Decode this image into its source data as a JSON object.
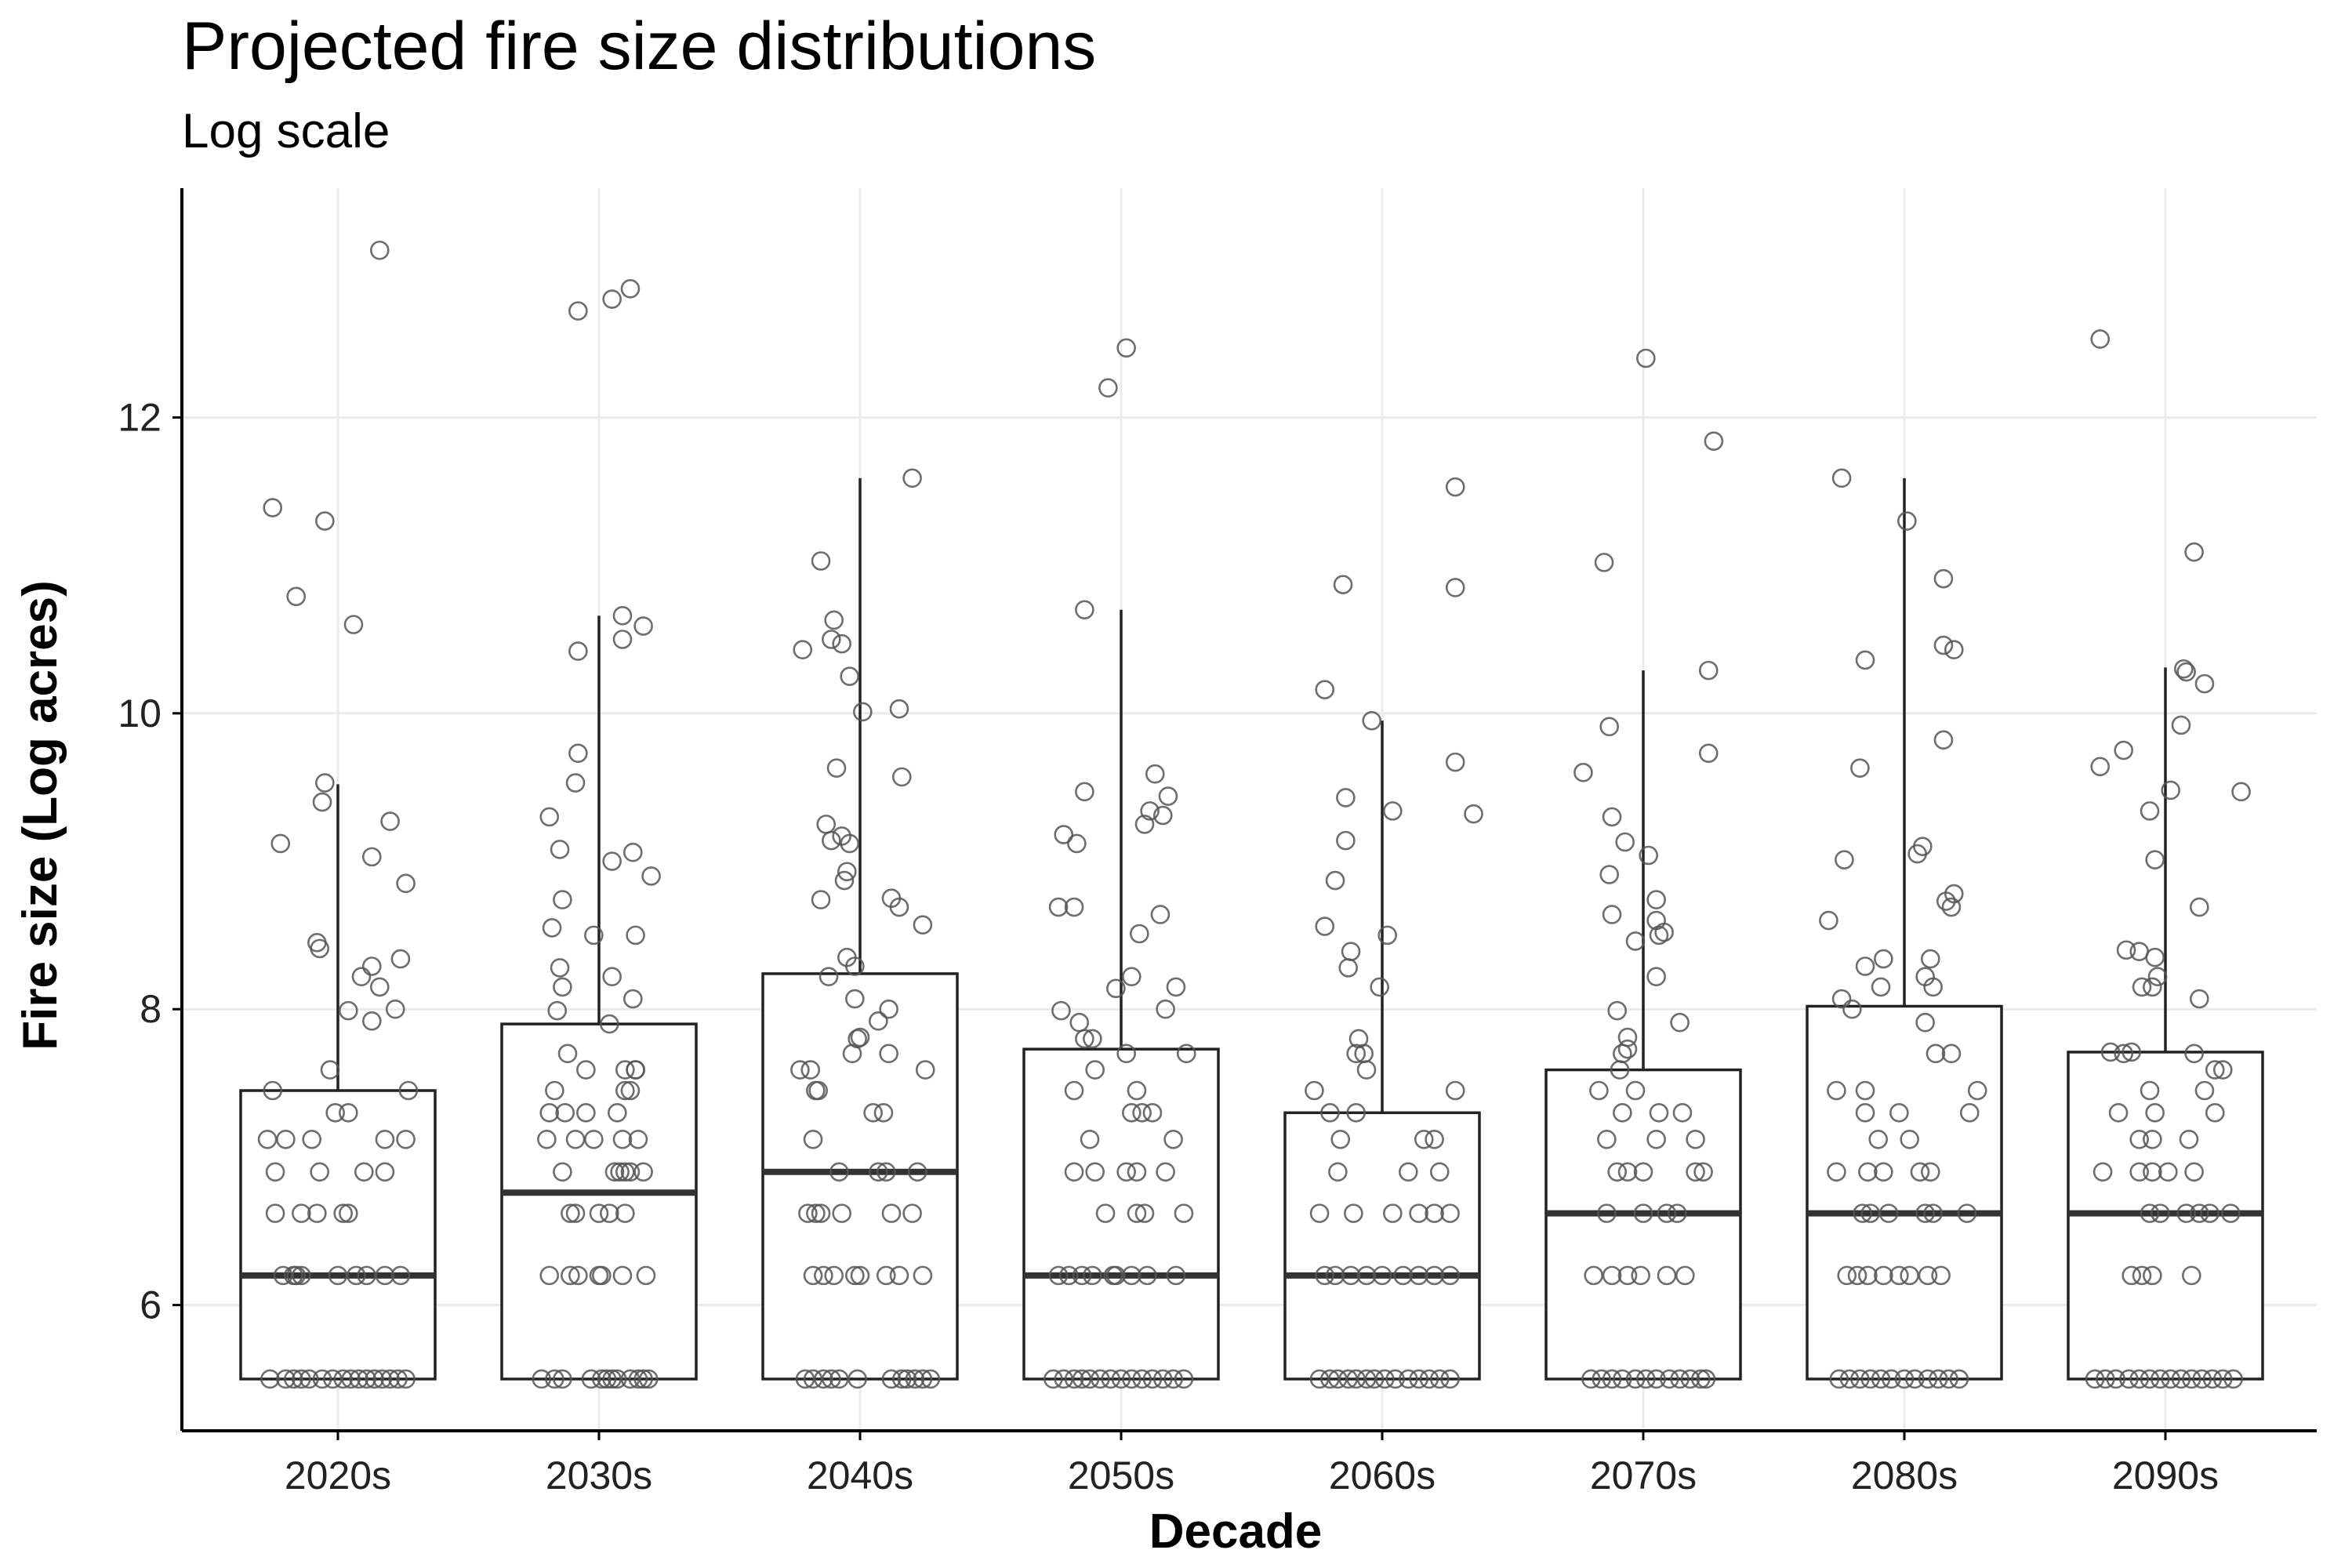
{
  "chart_data": {
    "type": "boxplot",
    "title": "Projected fire size distributions",
    "subtitle": "Log scale",
    "xlabel": "Decade",
    "ylabel": "Fire size (Log acres)",
    "ylim": [
      5.15,
      13.55
    ],
    "yticks": [
      6,
      8,
      10,
      12
    ],
    "grid": true,
    "legend": "none",
    "colors": {
      "box_stroke": "#222222",
      "point_stroke": "#555555",
      "grid": "#ebebeb",
      "axis": "#000000"
    },
    "categories": [
      "2020s",
      "2030s",
      "2040s",
      "2050s",
      "2060s",
      "2070s",
      "2080s",
      "2090s"
    ],
    "boxes": [
      {
        "category": "2020s",
        "q1": 5.5,
        "median": 6.2,
        "q3": 7.45,
        "whisker_low": 5.5,
        "whisker_high": 9.52
      },
      {
        "category": "2030s",
        "q1": 5.5,
        "median": 6.76,
        "q3": 7.9,
        "whisker_low": 5.5,
        "whisker_high": 10.66
      },
      {
        "category": "2040s",
        "q1": 5.5,
        "median": 6.9,
        "q3": 8.24,
        "whisker_low": 5.5,
        "whisker_high": 11.59
      },
      {
        "category": "2050s",
        "q1": 5.5,
        "median": 6.2,
        "q3": 7.73,
        "whisker_low": 5.5,
        "whisker_high": 10.7
      },
      {
        "category": "2060s",
        "q1": 5.5,
        "median": 6.2,
        "q3": 7.3,
        "whisker_low": 5.5,
        "whisker_high": 9.95
      },
      {
        "category": "2070s",
        "q1": 5.5,
        "median": 6.62,
        "q3": 7.59,
        "whisker_low": 5.5,
        "whisker_high": 10.29
      },
      {
        "category": "2080s",
        "q1": 5.5,
        "median": 6.62,
        "q3": 8.02,
        "whisker_low": 5.5,
        "whisker_high": 11.59
      },
      {
        "category": "2090s",
        "q1": 5.5,
        "median": 6.62,
        "q3": 7.71,
        "whisker_low": 5.5,
        "whisker_high": 10.31
      }
    ],
    "points": [
      {
        "category": "2020s",
        "values": [
          13.13,
          11.39,
          11.3,
          10.79,
          10.6,
          9.53,
          9.4,
          9.27,
          9.12,
          9.03,
          8.85,
          8.45,
          8.41,
          8.34,
          8.29,
          8.22,
          8.15,
          8.0,
          7.99,
          7.92,
          7.59,
          7.45,
          7.45,
          7.3,
          7.3,
          7.12,
          7.12,
          7.12,
          7.12,
          7.12,
          6.9,
          6.9,
          6.9,
          6.9,
          6.62,
          6.62,
          6.62,
          6.62,
          6.62,
          6.2,
          6.2,
          6.2,
          6.2,
          6.2,
          6.2,
          6.2,
          6.2,
          6.2,
          5.5,
          5.5,
          5.5,
          5.5,
          5.5,
          5.5,
          5.5,
          5.5,
          5.5,
          5.5,
          5.5,
          5.5,
          5.5,
          5.5,
          5.5,
          5.5
        ],
        "offsets": [
          0.16,
          -0.25,
          -0.05,
          -0.16,
          0.06,
          -0.05,
          -0.06,
          0.2,
          -0.22,
          0.13,
          0.26,
          -0.08,
          -0.07,
          0.24,
          0.13,
          0.09,
          0.16,
          0.22,
          0.04,
          0.13,
          -0.03,
          -0.25,
          0.27,
          -0.01,
          0.04,
          -0.27,
          -0.2,
          -0.1,
          0.18,
          0.26,
          -0.24,
          -0.07,
          0.1,
          0.18,
          -0.24,
          -0.14,
          -0.08,
          0.02,
          0.04,
          -0.21,
          -0.17,
          -0.16,
          -0.14,
          0.0,
          0.07,
          0.11,
          0.18,
          0.24,
          -0.26,
          -0.2,
          -0.17,
          -0.14,
          -0.11,
          -0.06,
          -0.02,
          0.02,
          0.05,
          0.08,
          0.11,
          0.14,
          0.17,
          0.2,
          0.23,
          0.26
        ]
      },
      {
        "category": "2030s",
        "values": [
          12.87,
          12.8,
          12.72,
          10.66,
          10.59,
          10.5,
          10.42,
          9.73,
          9.53,
          9.3,
          9.08,
          9.06,
          9.0,
          8.9,
          8.74,
          8.55,
          8.5,
          8.5,
          8.28,
          8.22,
          8.15,
          8.07,
          7.99,
          7.9,
          7.7,
          7.59,
          7.59,
          7.59,
          7.59,
          7.45,
          7.45,
          7.45,
          7.3,
          7.3,
          7.3,
          7.3,
          7.12,
          7.12,
          7.12,
          7.12,
          7.12,
          6.9,
          6.9,
          6.9,
          6.9,
          6.9,
          6.9,
          6.62,
          6.62,
          6.62,
          6.62,
          6.62,
          6.2,
          6.2,
          6.2,
          6.2,
          6.2,
          6.2,
          6.2,
          5.5,
          5.5,
          5.5,
          5.5,
          5.5,
          5.5,
          5.5,
          5.5,
          5.5,
          5.5,
          5.5,
          5.5
        ],
        "offsets": [
          0.12,
          0.05,
          -0.08,
          0.09,
          0.17,
          0.09,
          -0.08,
          -0.08,
          -0.09,
          -0.19,
          -0.15,
          0.13,
          0.05,
          0.2,
          -0.14,
          -0.18,
          -0.02,
          0.14,
          -0.15,
          0.05,
          -0.14,
          0.13,
          -0.16,
          0.04,
          -0.12,
          -0.05,
          0.1,
          0.14,
          0.14,
          -0.17,
          0.1,
          0.12,
          -0.19,
          -0.13,
          -0.05,
          0.07,
          -0.2,
          -0.09,
          -0.02,
          0.09,
          0.15,
          -0.14,
          0.06,
          0.08,
          0.1,
          0.12,
          0.17,
          -0.11,
          -0.09,
          0.0,
          0.04,
          0.1,
          -0.19,
          -0.11,
          -0.08,
          0.0,
          0.01,
          0.09,
          0.18,
          -0.22,
          -0.17,
          -0.14,
          -0.03,
          0.01,
          0.03,
          0.05,
          0.07,
          0.12,
          0.15,
          0.17,
          0.19
        ]
      },
      {
        "category": "2040s",
        "values": [
          11.59,
          11.03,
          10.63,
          10.5,
          10.47,
          10.43,
          10.25,
          10.03,
          10.01,
          9.63,
          9.57,
          9.25,
          9.17,
          9.14,
          9.12,
          8.93,
          8.87,
          8.75,
          8.74,
          8.69,
          8.57,
          8.35,
          8.29,
          8.22,
          8.07,
          8.0,
          7.92,
          7.81,
          7.8,
          7.7,
          7.7,
          7.59,
          7.59,
          7.59,
          7.45,
          7.45,
          7.3,
          7.3,
          7.12,
          6.9,
          6.9,
          6.9,
          6.9,
          6.62,
          6.62,
          6.62,
          6.62,
          6.62,
          6.62,
          6.2,
          6.2,
          6.2,
          6.2,
          6.2,
          6.2,
          6.2,
          6.2,
          5.5,
          5.5,
          5.5,
          5.5,
          5.5,
          5.5,
          5.5,
          5.5,
          5.5,
          5.5,
          5.5,
          5.5
        ],
        "offsets": [
          0.2,
          -0.15,
          -0.1,
          -0.11,
          -0.07,
          -0.22,
          -0.04,
          0.15,
          0.01,
          -0.09,
          0.16,
          -0.13,
          -0.07,
          -0.11,
          -0.04,
          -0.05,
          -0.06,
          0.12,
          -0.15,
          0.15,
          0.24,
          -0.05,
          -0.02,
          -0.12,
          -0.02,
          0.11,
          0.07,
          0.0,
          -0.01,
          -0.03,
          0.11,
          -0.23,
          -0.19,
          0.25,
          -0.17,
          -0.16,
          0.05,
          0.09,
          -0.18,
          -0.08,
          0.07,
          0.1,
          0.22,
          -0.2,
          -0.17,
          -0.15,
          -0.07,
          0.12,
          0.2,
          -0.18,
          -0.14,
          -0.1,
          -0.02,
          0.0,
          0.1,
          0.15,
          0.24,
          -0.21,
          -0.18,
          -0.14,
          -0.11,
          -0.08,
          -0.01,
          0.12,
          0.16,
          0.18,
          0.21,
          0.24,
          0.27
        ]
      },
      {
        "category": "2050s",
        "values": [
          12.47,
          12.2,
          10.7,
          9.59,
          9.47,
          9.44,
          9.34,
          9.31,
          9.25,
          9.18,
          9.12,
          8.69,
          8.69,
          8.64,
          8.51,
          8.22,
          8.15,
          8.14,
          8.0,
          7.99,
          7.91,
          7.8,
          7.8,
          7.7,
          7.7,
          7.59,
          7.45,
          7.45,
          7.3,
          7.3,
          7.3,
          7.12,
          7.12,
          6.9,
          6.9,
          6.9,
          6.9,
          6.9,
          6.62,
          6.62,
          6.62,
          6.62,
          6.2,
          6.2,
          6.2,
          6.2,
          6.2,
          6.2,
          6.2,
          6.2,
          6.2,
          5.5,
          5.5,
          5.5,
          5.5,
          5.5,
          5.5,
          5.5,
          5.5,
          5.5,
          5.5,
          5.5,
          5.5,
          5.5,
          5.5
        ],
        "offsets": [
          0.02,
          -0.05,
          -0.14,
          0.13,
          -0.14,
          0.18,
          0.11,
          0.16,
          0.09,
          -0.22,
          -0.17,
          -0.24,
          -0.18,
          0.15,
          0.07,
          0.04,
          0.21,
          -0.02,
          0.17,
          -0.23,
          -0.16,
          -0.14,
          -0.11,
          0.02,
          0.25,
          -0.1,
          -0.18,
          0.06,
          0.04,
          0.08,
          0.12,
          -0.12,
          0.2,
          -0.18,
          -0.1,
          0.02,
          0.06,
          0.17,
          -0.06,
          0.06,
          0.09,
          0.24,
          -0.24,
          -0.2,
          -0.15,
          -0.11,
          -0.03,
          -0.02,
          0.04,
          0.1,
          0.21,
          -0.26,
          -0.22,
          -0.18,
          -0.15,
          -0.12,
          -0.08,
          -0.04,
          0.0,
          0.04,
          0.08,
          0.12,
          0.16,
          0.2,
          0.24
        ]
      },
      {
        "category": "2060s",
        "values": [
          11.53,
          10.87,
          10.85,
          10.16,
          9.95,
          9.67,
          9.43,
          9.34,
          9.32,
          9.14,
          8.87,
          8.56,
          8.5,
          8.39,
          8.28,
          8.15,
          7.8,
          7.7,
          7.7,
          7.59,
          7.45,
          7.45,
          7.3,
          7.3,
          7.12,
          7.12,
          7.12,
          6.9,
          6.9,
          6.9,
          6.62,
          6.62,
          6.62,
          6.62,
          6.62,
          6.62,
          6.2,
          6.2,
          6.2,
          6.2,
          6.2,
          6.2,
          6.2,
          6.2,
          6.2,
          5.5,
          5.5,
          5.5,
          5.5,
          5.5,
          5.5,
          5.5,
          5.5,
          5.5,
          5.5,
          5.5,
          5.5,
          5.5,
          5.5
        ],
        "offsets": [
          0.28,
          -0.15,
          0.28,
          -0.22,
          -0.04,
          0.28,
          -0.14,
          0.04,
          0.35,
          -0.14,
          -0.18,
          -0.22,
          0.02,
          -0.12,
          -0.13,
          -0.01,
          -0.09,
          -0.1,
          -0.07,
          -0.06,
          -0.26,
          0.28,
          -0.2,
          -0.1,
          -0.16,
          0.16,
          0.2,
          -0.17,
          0.1,
          0.22,
          -0.24,
          -0.11,
          0.04,
          0.14,
          0.2,
          0.26,
          -0.22,
          -0.18,
          -0.12,
          -0.06,
          0.0,
          0.08,
          0.14,
          0.2,
          0.26,
          -0.24,
          -0.2,
          -0.17,
          -0.13,
          -0.1,
          -0.06,
          -0.03,
          0.01,
          0.05,
          0.1,
          0.14,
          0.18,
          0.22,
          0.26
        ]
      },
      {
        "category": "2070s",
        "values": [
          12.4,
          11.84,
          11.02,
          10.29,
          9.91,
          9.73,
          9.6,
          9.3,
          9.13,
          9.04,
          8.91,
          8.74,
          8.64,
          8.6,
          8.52,
          8.5,
          8.46,
          8.22,
          7.99,
          7.91,
          7.81,
          7.73,
          7.7,
          7.59,
          7.45,
          7.45,
          7.3,
          7.3,
          7.3,
          7.12,
          7.12,
          7.12,
          6.9,
          6.9,
          6.9,
          6.9,
          6.9,
          6.62,
          6.62,
          6.62,
          6.62,
          6.2,
          6.2,
          6.2,
          6.2,
          6.2,
          6.2,
          5.5,
          5.5,
          5.5,
          5.5,
          5.5,
          5.5,
          5.5,
          5.5,
          5.5,
          5.5,
          5.5,
          5.5
        ],
        "offsets": [
          0.01,
          0.27,
          -0.15,
          0.25,
          -0.13,
          0.25,
          -0.23,
          -0.12,
          -0.07,
          0.02,
          -0.13,
          0.05,
          -0.12,
          0.05,
          0.08,
          0.06,
          -0.03,
          0.05,
          -0.1,
          0.14,
          -0.06,
          -0.06,
          -0.08,
          -0.09,
          -0.17,
          -0.03,
          -0.08,
          0.06,
          0.15,
          -0.14,
          0.05,
          0.2,
          -0.1,
          -0.06,
          0.0,
          0.2,
          0.23,
          -0.14,
          0.0,
          0.09,
          0.13,
          -0.19,
          -0.12,
          -0.06,
          -0.01,
          0.09,
          0.16,
          -0.2,
          -0.16,
          -0.12,
          -0.08,
          -0.03,
          0.01,
          0.05,
          0.1,
          0.14,
          0.18,
          0.22,
          0.24
        ]
      },
      {
        "category": "2080s",
        "values": [
          11.59,
          11.3,
          10.91,
          10.46,
          10.43,
          10.36,
          9.82,
          9.63,
          9.1,
          9.05,
          9.01,
          8.78,
          8.73,
          8.69,
          8.6,
          8.34,
          8.34,
          8.29,
          8.22,
          8.15,
          8.15,
          8.07,
          8.0,
          7.91,
          7.7,
          7.7,
          7.45,
          7.45,
          7.45,
          7.3,
          7.3,
          7.3,
          7.12,
          7.12,
          6.9,
          6.9,
          6.9,
          6.9,
          6.9,
          6.62,
          6.62,
          6.62,
          6.62,
          6.62,
          6.62,
          6.2,
          6.2,
          6.2,
          6.2,
          6.2,
          6.2,
          6.2,
          6.2,
          5.5,
          5.5,
          5.5,
          5.5,
          5.5,
          5.5,
          5.5,
          5.5,
          5.5,
          5.5,
          5.5,
          5.5
        ],
        "offsets": [
          -0.24,
          0.01,
          0.15,
          0.15,
          0.19,
          -0.15,
          0.15,
          -0.17,
          0.07,
          0.05,
          -0.23,
          0.19,
          0.16,
          0.18,
          -0.29,
          -0.08,
          0.1,
          -0.15,
          0.08,
          -0.09,
          0.11,
          -0.24,
          -0.2,
          0.08,
          0.12,
          0.18,
          -0.26,
          -0.15,
          0.28,
          -0.15,
          -0.02,
          0.25,
          -0.1,
          0.02,
          -0.26,
          -0.14,
          -0.08,
          0.06,
          0.1,
          -0.16,
          -0.13,
          -0.06,
          0.08,
          0.11,
          0.24,
          -0.22,
          -0.18,
          -0.14,
          -0.08,
          -0.02,
          0.02,
          0.09,
          0.14,
          -0.25,
          -0.21,
          -0.17,
          -0.13,
          -0.09,
          -0.05,
          0.0,
          0.04,
          0.09,
          0.13,
          0.17,
          0.21
        ]
      },
      {
        "category": "2090s",
        "values": [
          12.53,
          11.09,
          10.3,
          10.28,
          10.2,
          9.92,
          9.75,
          9.64,
          9.48,
          9.47,
          9.34,
          9.01,
          8.69,
          8.4,
          8.39,
          8.35,
          8.22,
          8.15,
          8.15,
          8.07,
          7.71,
          7.71,
          7.7,
          7.7,
          7.59,
          7.59,
          7.45,
          7.45,
          7.3,
          7.3,
          7.3,
          7.12,
          7.12,
          7.12,
          6.9,
          6.9,
          6.9,
          6.9,
          6.9,
          6.62,
          6.62,
          6.62,
          6.62,
          6.62,
          6.62,
          6.2,
          6.2,
          6.2,
          6.2,
          5.5,
          5.5,
          5.5,
          5.5,
          5.5,
          5.5,
          5.5,
          5.5,
          5.5,
          5.5,
          5.5,
          5.5,
          5.5,
          5.5
        ],
        "offsets": [
          -0.25,
          0.11,
          0.07,
          0.08,
          0.15,
          0.06,
          -0.16,
          -0.25,
          0.02,
          0.29,
          -0.06,
          -0.04,
          0.13,
          -0.15,
          -0.1,
          -0.04,
          -0.03,
          -0.09,
          -0.05,
          0.13,
          -0.21,
          -0.13,
          -0.16,
          0.11,
          0.19,
          0.22,
          -0.06,
          0.15,
          -0.18,
          -0.04,
          0.19,
          -0.1,
          -0.05,
          0.09,
          -0.24,
          -0.1,
          -0.05,
          0.01,
          0.11,
          -0.06,
          -0.02,
          0.08,
          0.13,
          0.17,
          0.25,
          -0.13,
          -0.09,
          -0.05,
          0.1,
          -0.27,
          -0.23,
          -0.19,
          -0.14,
          -0.1,
          -0.06,
          -0.02,
          0.02,
          0.06,
          0.1,
          0.14,
          0.18,
          0.22,
          0.26
        ]
      }
    ]
  }
}
